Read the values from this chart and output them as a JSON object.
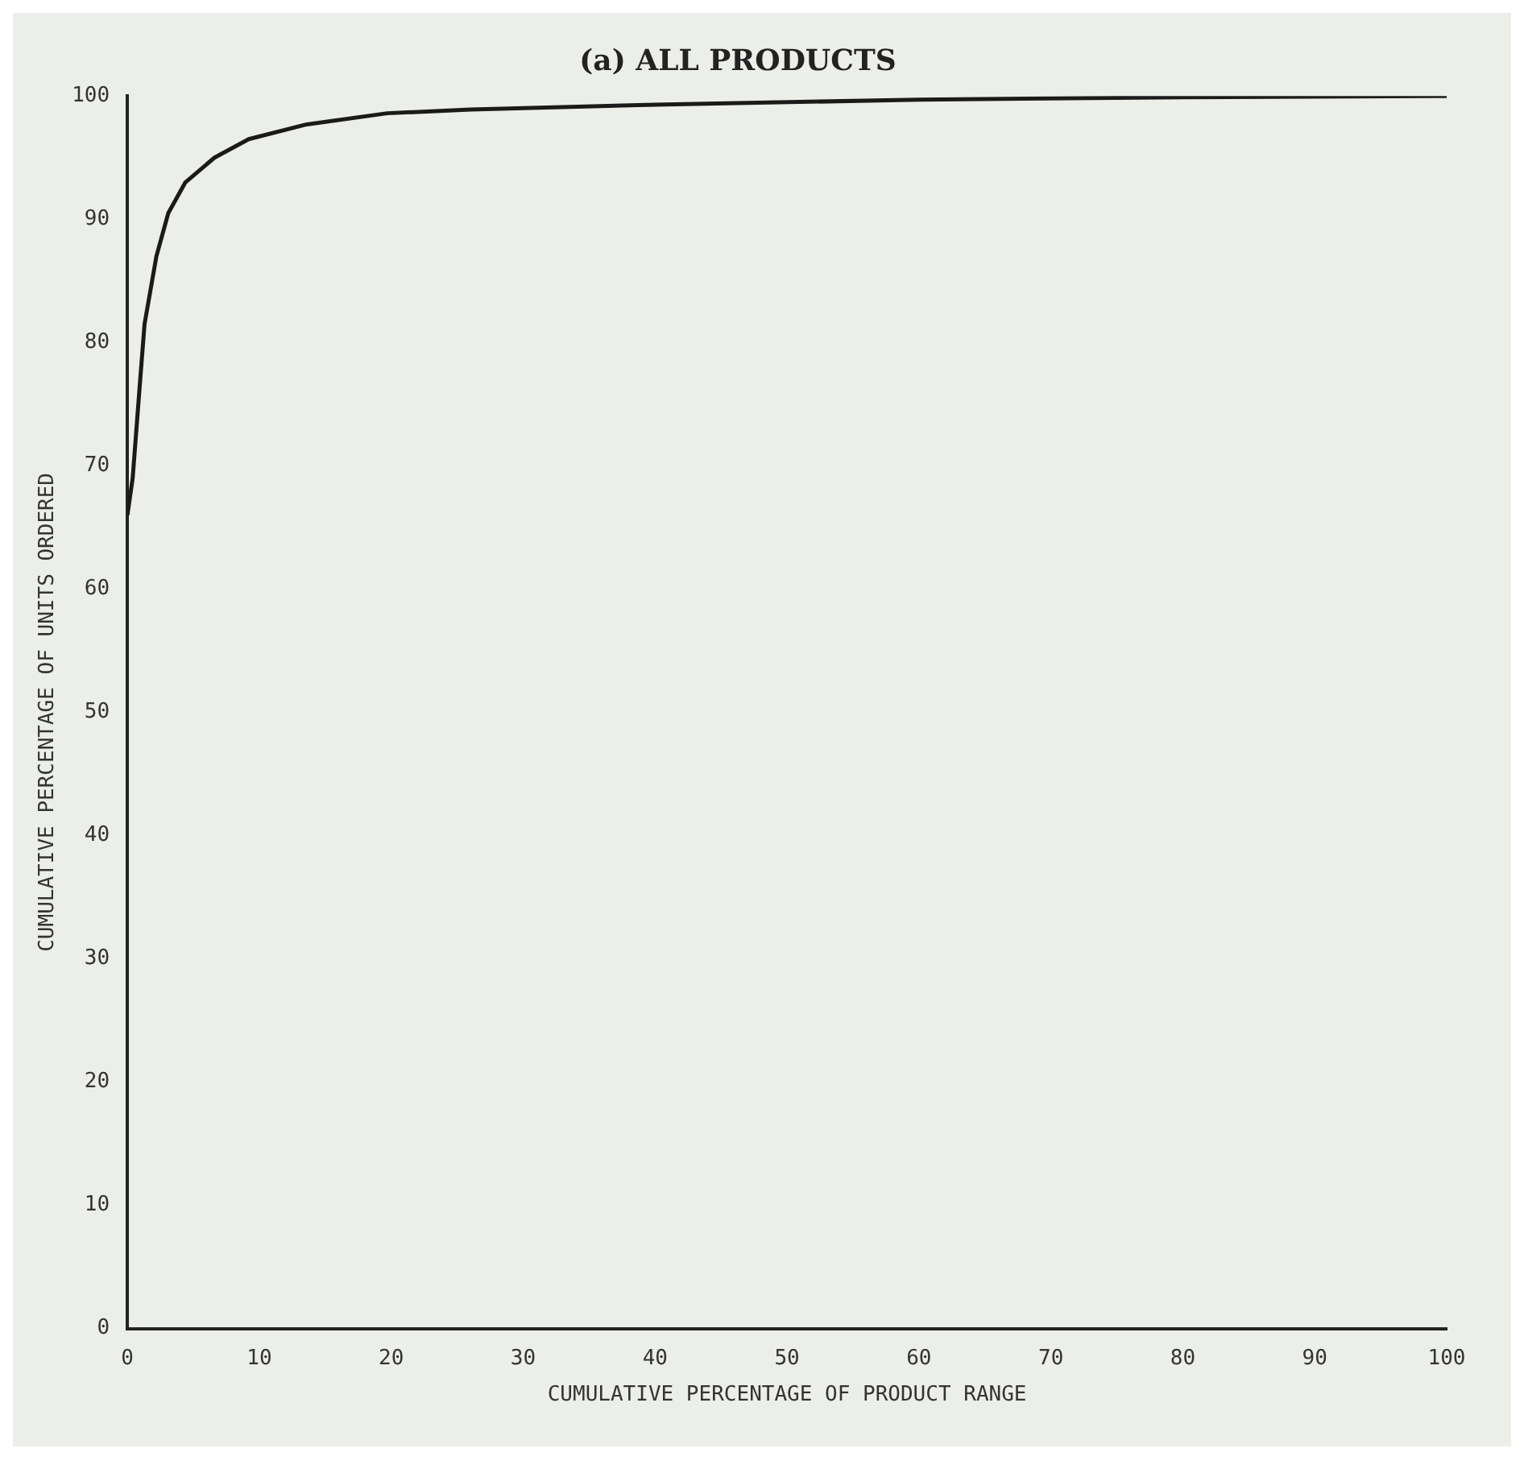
{
  "chart_data": {
    "type": "line",
    "title": "(a) ALL PRODUCTS",
    "xlabel": "CUMULATIVE PERCENTAGE OF PRODUCT RANGE",
    "ylabel": "CUMULATIVE PERCENTAGE OF UNITS ORDERED",
    "x": [
      0,
      0.4,
      0.9,
      1.3,
      2.2,
      3.1,
      4.4,
      6.6,
      9.2,
      13.6,
      19.7,
      26,
      40,
      60,
      80,
      100
    ],
    "series": [
      {
        "color": "#1a1a1a",
        "values": [
          66,
          69,
          76,
          81.5,
          87,
          90.5,
          93,
          95,
          96.5,
          97.7,
          98.6,
          98.9,
          99.3,
          99.7,
          99.9,
          100
        ]
      }
    ],
    "xlim": [
      0,
      100
    ],
    "ylim": [
      0,
      100
    ],
    "xticks": [
      0,
      10,
      20,
      30,
      40,
      50,
      60,
      70,
      80,
      90,
      100
    ],
    "yticks": [
      0,
      10,
      20,
      30,
      40,
      50,
      60,
      70,
      80,
      90,
      100
    ],
    "grid": false,
    "legend": false,
    "marker": "none",
    "line_style": "solid"
  }
}
